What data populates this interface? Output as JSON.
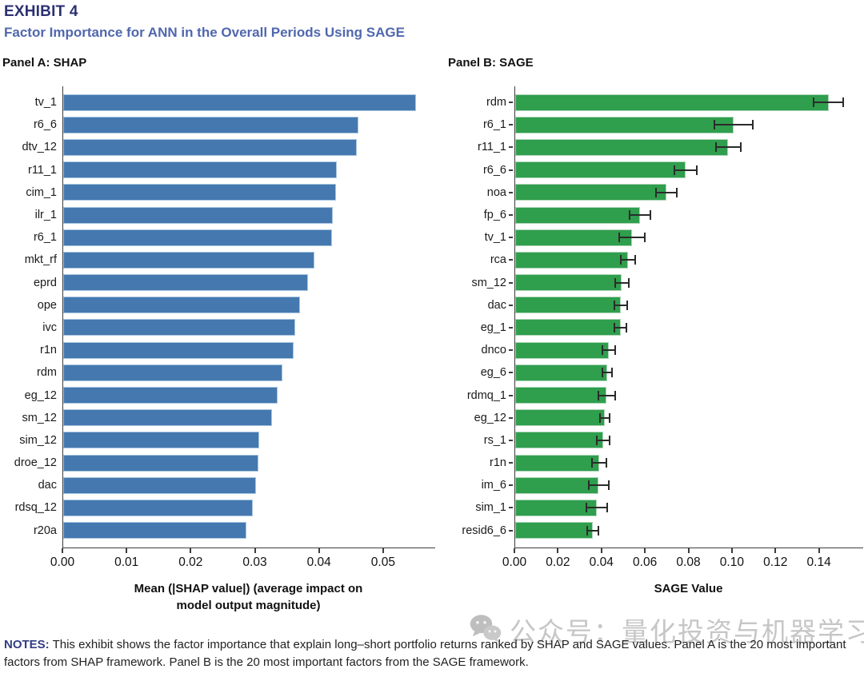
{
  "header": {
    "exhibit": "EXHIBIT 4",
    "title": "Factor Importance for ANN in the Overall Periods Using SAGE"
  },
  "chart_data": [
    {
      "type": "bar",
      "orientation": "horizontal",
      "panel_title": "Panel A: SHAP",
      "categories": [
        "tv_1",
        "r6_6",
        "dtv_12",
        "r11_1",
        "cim_1",
        "ilr_1",
        "r6_1",
        "mkt_rf",
        "eprd",
        "ope",
        "ivc",
        "r1n",
        "rdm",
        "eg_12",
        "sm_12",
        "sim_12",
        "droe_12",
        "dac",
        "rdsq_12",
        "r20a"
      ],
      "values": [
        0.055,
        0.046,
        0.0458,
        0.0427,
        0.0425,
        0.042,
        0.0419,
        0.0392,
        0.0382,
        0.0369,
        0.0362,
        0.0359,
        0.0342,
        0.0334,
        0.0326,
        0.0306,
        0.0304,
        0.03,
        0.0295,
        0.0286
      ],
      "xlabel_lines": [
        "Mean (|SHAP value|) (average impact on",
        "model output magnitude)"
      ],
      "xlim": [
        0,
        0.058
      ],
      "xticks": [
        {
          "v": 0.0,
          "label": "0.00"
        },
        {
          "v": 0.01,
          "label": "0.01"
        },
        {
          "v": 0.02,
          "label": "0.02"
        },
        {
          "v": 0.03,
          "label": "0.03"
        },
        {
          "v": 0.04,
          "label": "0.04"
        },
        {
          "v": 0.05,
          "label": "0.05"
        }
      ],
      "grid": false,
      "legend": false,
      "bar_color": "#4478af",
      "bar_edge": "#a9c5e0"
    },
    {
      "type": "bar",
      "orientation": "horizontal",
      "panel_title": "Panel B: SAGE",
      "categories": [
        "rdm",
        "r6_1",
        "r11_1",
        "r6_6",
        "noa",
        "fp_6",
        "tv_1",
        "rca",
        "sm_12",
        "dac",
        "eg_1",
        "dnco",
        "eg_6",
        "rdmq_1",
        "eg_12",
        "rs_1",
        "r1n",
        "im_6",
        "sim_1",
        "resid6_6"
      ],
      "values": [
        0.144,
        0.1005,
        0.098,
        0.0783,
        0.0695,
        0.0574,
        0.0537,
        0.0518,
        0.049,
        0.0486,
        0.0484,
        0.043,
        0.0423,
        0.042,
        0.0412,
        0.0404,
        0.0386,
        0.0384,
        0.0375,
        0.0357
      ],
      "errors": [
        0.0073,
        0.0092,
        0.006,
        0.0055,
        0.005,
        0.005,
        0.0062,
        0.0037,
        0.0035,
        0.0033,
        0.0031,
        0.0033,
        0.0024,
        0.0042,
        0.0024,
        0.0033,
        0.0038,
        0.005,
        0.005,
        0.003
      ],
      "xlabel_lines": [
        "SAGE Value"
      ],
      "xlim": [
        0,
        0.16
      ],
      "xticks": [
        {
          "v": 0.0,
          "label": "0.00"
        },
        {
          "v": 0.02,
          "label": "0.02"
        },
        {
          "v": 0.04,
          "label": "0.04"
        },
        {
          "v": 0.06,
          "label": "0.06"
        },
        {
          "v": 0.08,
          "label": "0.08"
        },
        {
          "v": 0.1,
          "label": "0.10"
        },
        {
          "v": 0.12,
          "label": "0.12"
        },
        {
          "v": 0.14,
          "label": "0.14"
        }
      ],
      "grid": false,
      "legend": false,
      "bar_color": "#2f9e4d",
      "bar_edge": "#aed6b8",
      "error_color": "#2b2b2b"
    }
  ],
  "notes": {
    "label": "NOTES:",
    "text": " This exhibit shows the factor importance that explain long–short portfolio returns ranked by SHAP and SAGE values. Panel A is the 20 most important factors from SHAP framework. Panel B is the 20 most important factors from the SAGE framework."
  },
  "watermark": {
    "icon": "wechat-icon",
    "text": "公众号：量化投资与机器学习"
  },
  "colors": {
    "exhibit_title": "#2c3172",
    "subtitle": "#4f67ae",
    "notes_label": "#323c84",
    "axis": "#3d3d3d",
    "shap_bar": "#4478af",
    "sage_bar": "#2f9e4d"
  }
}
